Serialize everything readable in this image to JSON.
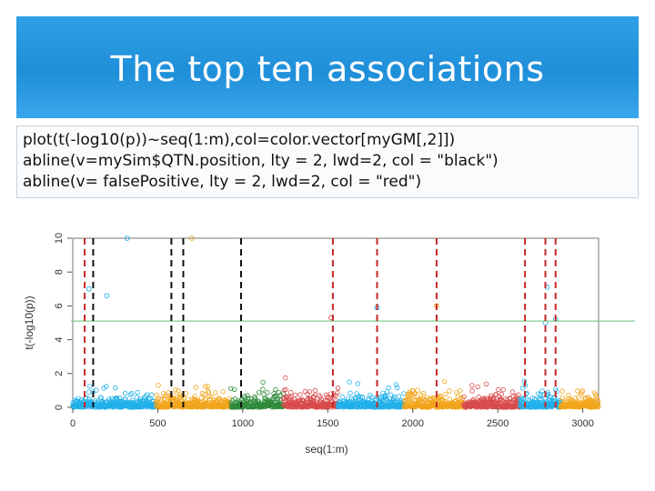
{
  "slide": {
    "title": "The top ten associations",
    "code_lines": [
      "plot(t(-log10(p))~seq(1:m),col=color.vector[myGM[,2]])",
      "abline(v=mySim$QTN.position, lty = 2, lwd=2, col = \"black\")",
      "abline(v= falsePositive, lty = 2, lwd=2, col = \"red\")"
    ]
  },
  "chart_data": {
    "type": "scatter",
    "xlabel": "seq(1:m)",
    "ylabel": "t(-log10(p))",
    "xlim": [
      0,
      3093
    ],
    "ylim": [
      0,
      10
    ],
    "x_ticks": [
      "0",
      "500",
      "1000",
      "1500",
      "2000",
      "2500",
      "3000"
    ],
    "y_ticks": [
      "0",
      "2",
      "4",
      "6",
      "8",
      "10"
    ],
    "threshold": 5.1,
    "threshold_color": "#7fcf8f",
    "true_qtn_lines": [
      120,
      580,
      650,
      990
    ],
    "false_positive_lines": [
      70,
      1530,
      1790,
      2140,
      2660,
      2780,
      2840
    ],
    "chromosomes": [
      {
        "start": 0,
        "end": 490,
        "color": "#1fb0ea"
      },
      {
        "start": 490,
        "end": 930,
        "color": "#f2a51a"
      },
      {
        "start": 930,
        "end": 1240,
        "color": "#2e8b3a"
      },
      {
        "start": 1240,
        "end": 1560,
        "color": "#d94a4a"
      },
      {
        "start": 1560,
        "end": 1950,
        "color": "#1fb0ea"
      },
      {
        "start": 1950,
        "end": 2300,
        "color": "#f2a51a"
      },
      {
        "start": 2300,
        "end": 2630,
        "color": "#d94a4a"
      },
      {
        "start": 2630,
        "end": 2870,
        "color": "#1fb0ea"
      },
      {
        "start": 2870,
        "end": 3093,
        "color": "#f2a51a"
      }
    ],
    "highlighted_points": [
      {
        "x": 320,
        "y": 10.0
      },
      {
        "x": 700,
        "y": 10.0
      },
      {
        "x": 95,
        "y": 7.0
      },
      {
        "x": 200,
        "y": 6.6
      },
      {
        "x": 1520,
        "y": 5.3
      },
      {
        "x": 1790,
        "y": 5.9
      },
      {
        "x": 2140,
        "y": 6.0
      },
      {
        "x": 2790,
        "y": 7.1
      },
      {
        "x": 2840,
        "y": 5.2
      },
      {
        "x": 2780,
        "y": 5.0
      }
    ]
  }
}
